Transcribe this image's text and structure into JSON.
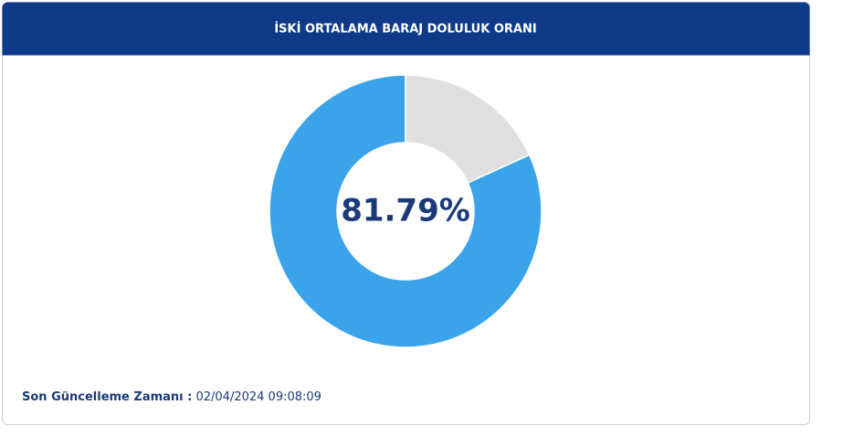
{
  "chart_data": {
    "type": "donut",
    "title": "İSKİ ORTALAMA BARAJ DOLULUK ORANI",
    "values": [
      81.79,
      18.21
    ],
    "value_labels": [
      "81.79%",
      null
    ],
    "colors": [
      "#3aa3ea",
      "#e0e0e0"
    ],
    "footer_label": "Son Güncelleme Zamanı :",
    "footer_value": "02/04/2024 09:08:09"
  }
}
